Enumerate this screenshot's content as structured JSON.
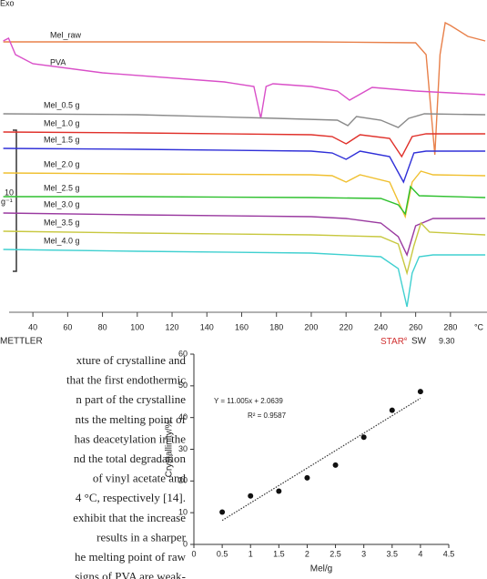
{
  "chart_data": [
    {
      "type": "line",
      "exo_label": "Exo",
      "xlabel": "°C",
      "footer_left": "METTLER",
      "footer_brand": "STAR",
      "footer_brand_mark": "e",
      "footer_right": "SW",
      "footer_version": "9.30",
      "scale_value": "10",
      "scale_unit": "W g⁻¹",
      "xlim": [
        21.1,
        301
      ],
      "xticks": [
        40,
        60,
        80,
        100,
        120,
        140,
        160,
        180,
        200,
        220,
        240,
        260,
        280
      ],
      "ylim": [
        0,
        345
      ],
      "series": [
        {
          "name": "Mel_raw",
          "color": "#e8804a",
          "x": [
            23,
            100,
            200,
            260,
            266,
            271,
            274,
            277,
            280,
            290,
            300
          ],
          "values": [
            299,
            299,
            299,
            298,
            285,
            175,
            285,
            320,
            317,
            305,
            300
          ]
        },
        {
          "name": "PVA",
          "color": "#d94fc8",
          "x": [
            23,
            26,
            30,
            40,
            80,
            150,
            167,
            171,
            174,
            178,
            200,
            215,
            222,
            235,
            260,
            300
          ],
          "values": [
            300,
            303,
            285,
            275,
            265,
            255,
            250,
            215,
            250,
            253,
            250,
            245,
            235,
            249,
            245,
            241
          ]
        },
        {
          "name": "Mel_0.5 g",
          "color": "#8a8a8a",
          "x": [
            23,
            100,
            180,
            215,
            221,
            226,
            240,
            250,
            256,
            265,
            300
          ],
          "values": [
            220,
            219,
            215,
            213,
            207,
            217,
            213,
            205,
            215,
            220,
            219
          ]
        },
        {
          "name": "Mel_1.0 g",
          "color": "#e0302a",
          "x": [
            23,
            100,
            200,
            212,
            220,
            228,
            245,
            252,
            258,
            266,
            300
          ],
          "values": [
            200,
            199,
            197,
            195,
            187,
            197,
            193,
            173,
            195,
            198,
            198
          ]
        },
        {
          "name": "Mel_1.5 g",
          "color": "#3030d8",
          "x": [
            23,
            100,
            200,
            212,
            220,
            228,
            245,
            253,
            259,
            266,
            300
          ],
          "values": [
            182,
            181,
            179,
            177,
            170,
            179,
            173,
            145,
            177,
            179,
            179
          ]
        },
        {
          "name": "Mel_2.0 g",
          "color": "#f0c030",
          "x": [
            23,
            100,
            200,
            212,
            220,
            228,
            245,
            254,
            258,
            263,
            270,
            300
          ],
          "values": [
            155,
            154,
            153,
            152,
            145,
            153,
            145,
            107,
            145,
            157,
            153,
            152
          ]
        },
        {
          "name": "Mel_2.5 g",
          "color": "#2ec02e",
          "x": [
            23,
            100,
            200,
            240,
            250,
            254,
            257,
            262,
            300
          ],
          "values": [
            129,
            129,
            128,
            127,
            120,
            110,
            140,
            130,
            128
          ]
        },
        {
          "name": "Mel_3.0 g",
          "color": "#9a3aa0",
          "x": [
            23,
            100,
            200,
            220,
            240,
            250,
            255,
            260,
            270,
            300
          ],
          "values": [
            111,
            109,
            107,
            105,
            100,
            85,
            65,
            97,
            105,
            105
          ]
        },
        {
          "name": "Mel_3.5 g",
          "color": "#c8c840",
          "x": [
            23,
            100,
            200,
            240,
            250,
            255,
            259,
            263,
            268,
            300
          ],
          "values": [
            91,
            89,
            87,
            85,
            77,
            45,
            75,
            100,
            90,
            87
          ]
        },
        {
          "name": "Mel_4.0 g",
          "color": "#40d0d0",
          "x": [
            23,
            100,
            200,
            240,
            250,
            255,
            258,
            262,
            270,
            300
          ],
          "values": [
            71,
            69,
            67,
            63,
            50,
            8,
            45,
            63,
            65,
            65
          ]
        }
      ]
    },
    {
      "type": "scatter",
      "xlabel": "Mel/g",
      "ylabel": "Crystallinity/%",
      "equation": "Y = 11.005x + 2.0639",
      "r2": "R² = 0.9587",
      "trend": {
        "slope": 11.005,
        "intercept": 2.0639,
        "x": [
          0.5,
          4
        ]
      },
      "x": [
        0.5,
        1,
        1.5,
        2,
        2.5,
        3,
        3.5,
        4
      ],
      "values": [
        10.2,
        15.3,
        16.8,
        21,
        25,
        33.8,
        42.3,
        48.2
      ],
      "color": "#111111",
      "xlim": [
        0,
        4.5
      ],
      "xticks": [
        0,
        0.5,
        1,
        1.5,
        2,
        2.5,
        3,
        3.5,
        4,
        4.5
      ],
      "ylim": [
        0,
        60
      ],
      "yticks": [
        0,
        10,
        20,
        30,
        40,
        50,
        60
      ]
    }
  ],
  "text": {
    "lines": [
      "xture of crystalline and",
      "that the first endothermic",
      "n part of the crystalline",
      "nts the melting point of",
      "has deacetylation in the",
      "nd the total degradation",
      "of vinyl acetate and",
      "4 °C, respectively [14].",
      "exhibit that the increase",
      "results in a sharper",
      "he melting point of raw",
      "signs of PVA are weak-"
    ]
  }
}
